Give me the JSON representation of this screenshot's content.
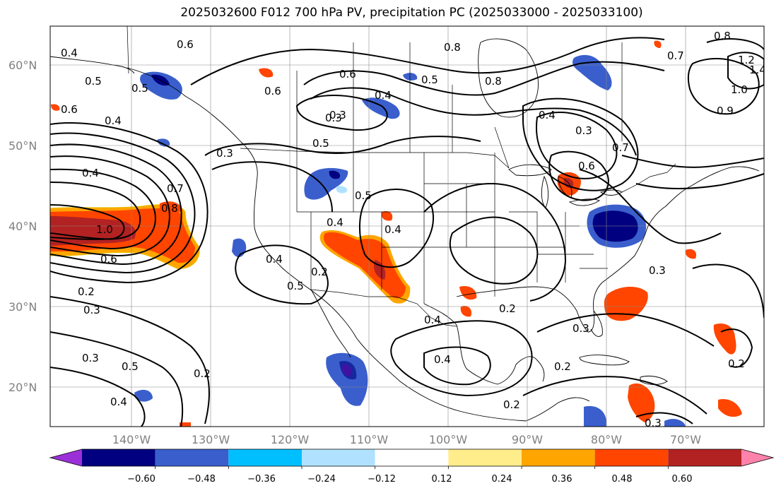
{
  "title": "2025032600 F012 700 hPa PV, precipitation PC (2025033000 - 2025033100)",
  "map": {
    "region": "North America / Eastern Pacific",
    "lon_range": [
      -150,
      -60
    ],
    "lat_range": [
      15,
      65
    ],
    "lon_ticks": [
      "140°W",
      "130°W",
      "120°W",
      "110°W",
      "100°W",
      "90°W",
      "80°W",
      "70°W"
    ],
    "lat_ticks": [
      "60°N",
      "50°N",
      "40°N",
      "30°N",
      "20°N"
    ],
    "gridlines": true,
    "features": [
      "coastlines",
      "country borders",
      "US state borders",
      "Canadian provinces"
    ]
  },
  "contours": {
    "field": "700 hPa PV",
    "color": "#000000",
    "labels": [
      "0.4",
      "0.6",
      "0.5",
      "0.6",
      "0.4",
      "0.5",
      "0.6",
      "0.4",
      "0.3",
      "0.3",
      "0.7",
      "0.8",
      "1.0",
      "0.6",
      "0.2",
      "0.3",
      "0.3",
      "0.5",
      "0.4",
      "0.2",
      "0.5",
      "0.5",
      "0.4",
      "0.4",
      "0.4",
      "0.5",
      "0.2",
      "0.6",
      "0.4",
      "0.3",
      "0.5",
      "0.8",
      "0.8",
      "0.4",
      "0.7",
      "0.6",
      "0.4",
      "0.2",
      "0.3",
      "0.4",
      "0.2",
      "0.2",
      "0.3",
      "0.2",
      "0.3",
      "0.8",
      "0.7",
      "1.2",
      "1.4",
      "1.0",
      "0.9",
      "0.3"
    ]
  },
  "shading": {
    "field": "precipitation PC",
    "regions": [
      {
        "name": "pacific-40N-plume",
        "class": "positive",
        "peak": ">0.60"
      },
      {
        "name": "southwest-us-band",
        "class": "positive",
        "peak": "0.48"
      },
      {
        "name": "mid-atlantic",
        "class": "negative",
        "peak": "-0.60"
      },
      {
        "name": "great-lakes",
        "class": "positive",
        "peak": "0.48"
      },
      {
        "name": "northern-rockies",
        "class": "negative",
        "peak": "-0.48"
      },
      {
        "name": "gulf-of-alaska",
        "class": "negative",
        "peak": "-0.48"
      },
      {
        "name": "baja-mexico",
        "class": "negative",
        "peak": "-0.60"
      },
      {
        "name": "western-atlantic",
        "class": "positive",
        "peak": "0.48"
      },
      {
        "name": "caribbean",
        "class": "positive",
        "peak": "0.48"
      }
    ]
  },
  "colorbar": {
    "colors": [
      "#9b30d9",
      "#000080",
      "#3a5fcd",
      "#00bfff",
      "#b0e2ff",
      "#ffffff",
      "#ffec8b",
      "#ffa500",
      "#ff4500",
      "#b22222",
      "#ff82ab"
    ],
    "tick_labels": [
      "−0.60",
      "−0.48",
      "−0.36",
      "−0.24",
      "−0.12",
      "0.12",
      "0.24",
      "0.36",
      "0.48",
      "0.60"
    ],
    "extend": "both"
  }
}
